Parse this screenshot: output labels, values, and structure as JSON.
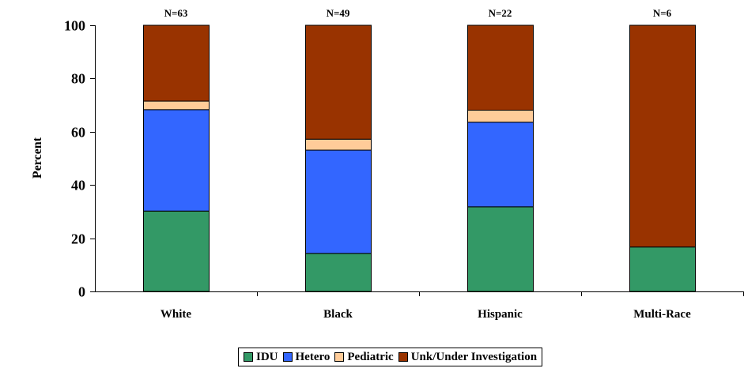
{
  "chart_data": {
    "type": "bar",
    "stacked": true,
    "categories": [
      "White",
      "Black",
      "Hispanic",
      "Multi-Race"
    ],
    "annotations": [
      "N=63",
      "N=49",
      "N=22",
      "N=6"
    ],
    "ylabel": "Percent",
    "ylim": [
      0,
      100
    ],
    "yticks": [
      0,
      20,
      40,
      60,
      80,
      100
    ],
    "grid": false,
    "legend_position": "bottom",
    "series": [
      {
        "name": "IDU",
        "color": "#339966",
        "values": [
          30.2,
          14.3,
          31.8,
          16.7
        ]
      },
      {
        "name": "Hetero",
        "color": "#3366ff",
        "values": [
          38.1,
          38.8,
          31.8,
          0
        ]
      },
      {
        "name": "Pediatric",
        "color": "#ffcc99",
        "values": [
          3.2,
          4.1,
          4.5,
          0
        ]
      },
      {
        "name": "Unk/Under Investigation",
        "color": "#993300",
        "values": [
          28.5,
          42.8,
          31.9,
          83.3
        ]
      }
    ]
  }
}
